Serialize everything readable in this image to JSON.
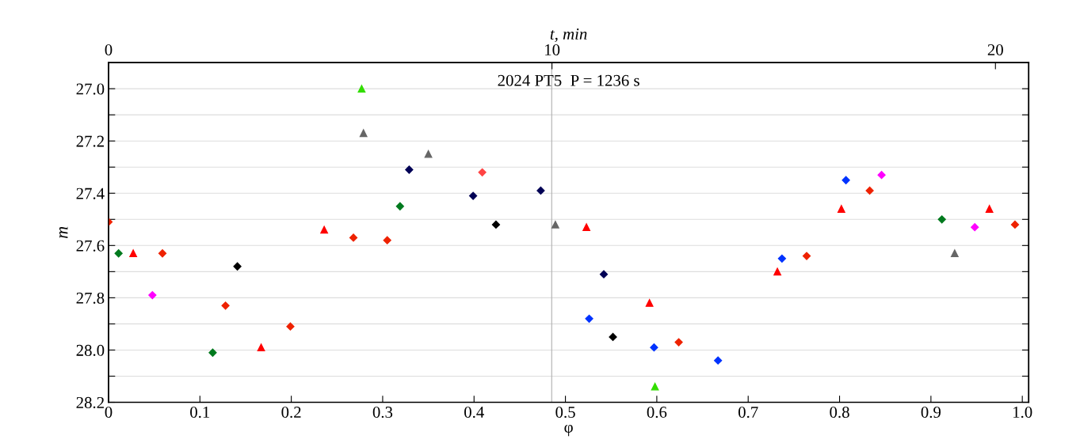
{
  "chart_data": {
    "type": "scatter",
    "title": "2024 PT5  P = 1236 s",
    "xlabel": "φ",
    "ylabel": "m",
    "x2label": "t, min",
    "xlim": [
      0,
      1.007
    ],
    "xticks": [
      0,
      0.1,
      0.2,
      0.3,
      0.4,
      0.5,
      0.6,
      0.7,
      0.8,
      0.9,
      {
        "value": 1.0,
        "label": "1.0"
      }
    ],
    "x2lim": [
      0,
      20.75
    ],
    "x2ticks": [
      0,
      10,
      20
    ],
    "ylim": [
      28.2,
      26.9
    ],
    "yticks": [
      {
        "value": 27.0,
        "label": "27.0"
      },
      {
        "value": 27.1,
        "label": null
      },
      {
        "value": 27.2,
        "label": "27.2"
      },
      {
        "value": 27.3,
        "label": null
      },
      {
        "value": 27.4,
        "label": "27.4"
      },
      {
        "value": 27.5,
        "label": null
      },
      {
        "value": 27.6,
        "label": "27.6"
      },
      {
        "value": 27.7,
        "label": null
      },
      {
        "value": 27.8,
        "label": "27.8"
      },
      {
        "value": 27.9,
        "label": null
      },
      {
        "value": 28.0,
        "label": "28.0"
      },
      {
        "value": 28.1,
        "label": null
      },
      {
        "value": 28.2,
        "label": "28.2"
      }
    ],
    "grid": "y",
    "legend": false,
    "ref_lines": [
      {
        "axis": "x",
        "value": 0.485,
        "color": "#b0b0b0",
        "line_style": "solid"
      }
    ],
    "series": [
      {
        "color": "#ee2200",
        "marker": "diamond",
        "x": [
          0.0,
          0.059,
          0.128,
          0.199,
          0.268,
          0.305,
          0.624,
          0.764,
          0.833,
          0.992
        ],
        "values": [
          27.51,
          27.63,
          27.83,
          27.91,
          27.57,
          27.58,
          27.97,
          27.64,
          27.39,
          27.52
        ]
      },
      {
        "color": "#ff4444",
        "marker": "diamond",
        "x": [
          0.409
        ],
        "values": [
          27.32
        ]
      },
      {
        "color": "#ff0000",
        "marker": "triangle",
        "x": [
          0.027,
          0.167,
          0.236,
          0.523,
          0.592,
          0.732,
          0.802,
          0.964
        ],
        "values": [
          27.63,
          27.99,
          27.54,
          27.53,
          27.82,
          27.7,
          27.46,
          27.46
        ]
      },
      {
        "color": "#007a1e",
        "marker": "diamond",
        "x": [
          0.011,
          0.114,
          0.319,
          0.912
        ],
        "values": [
          27.63,
          28.01,
          27.45,
          27.5
        ]
      },
      {
        "color": "#ff00ff",
        "marker": "diamond",
        "x": [
          0.048,
          0.846,
          0.948
        ],
        "values": [
          27.79,
          27.33,
          27.53
        ]
      },
      {
        "color": "#000000",
        "marker": "diamond",
        "x": [
          0.141,
          0.424,
          0.552
        ],
        "values": [
          27.68,
          27.52,
          27.95
        ]
      },
      {
        "color": "#000055",
        "marker": "diamond",
        "x": [
          0.329,
          0.399,
          0.473,
          0.542
        ],
        "values": [
          27.31,
          27.41,
          27.39,
          27.71
        ]
      },
      {
        "color": "#0033ff",
        "marker": "diamond",
        "x": [
          0.526,
          0.597,
          0.667,
          0.737,
          0.807
        ],
        "values": [
          27.88,
          27.99,
          28.04,
          27.65,
          27.35
        ]
      },
      {
        "color": "#33dd00",
        "marker": "triangle",
        "x": [
          0.277,
          0.598
        ],
        "values": [
          27.0,
          28.14
        ]
      },
      {
        "color": "#666666",
        "marker": "triangle",
        "x": [
          0.279,
          0.35,
          0.489,
          0.926
        ],
        "values": [
          27.17,
          27.25,
          27.52,
          27.63
        ]
      }
    ]
  }
}
